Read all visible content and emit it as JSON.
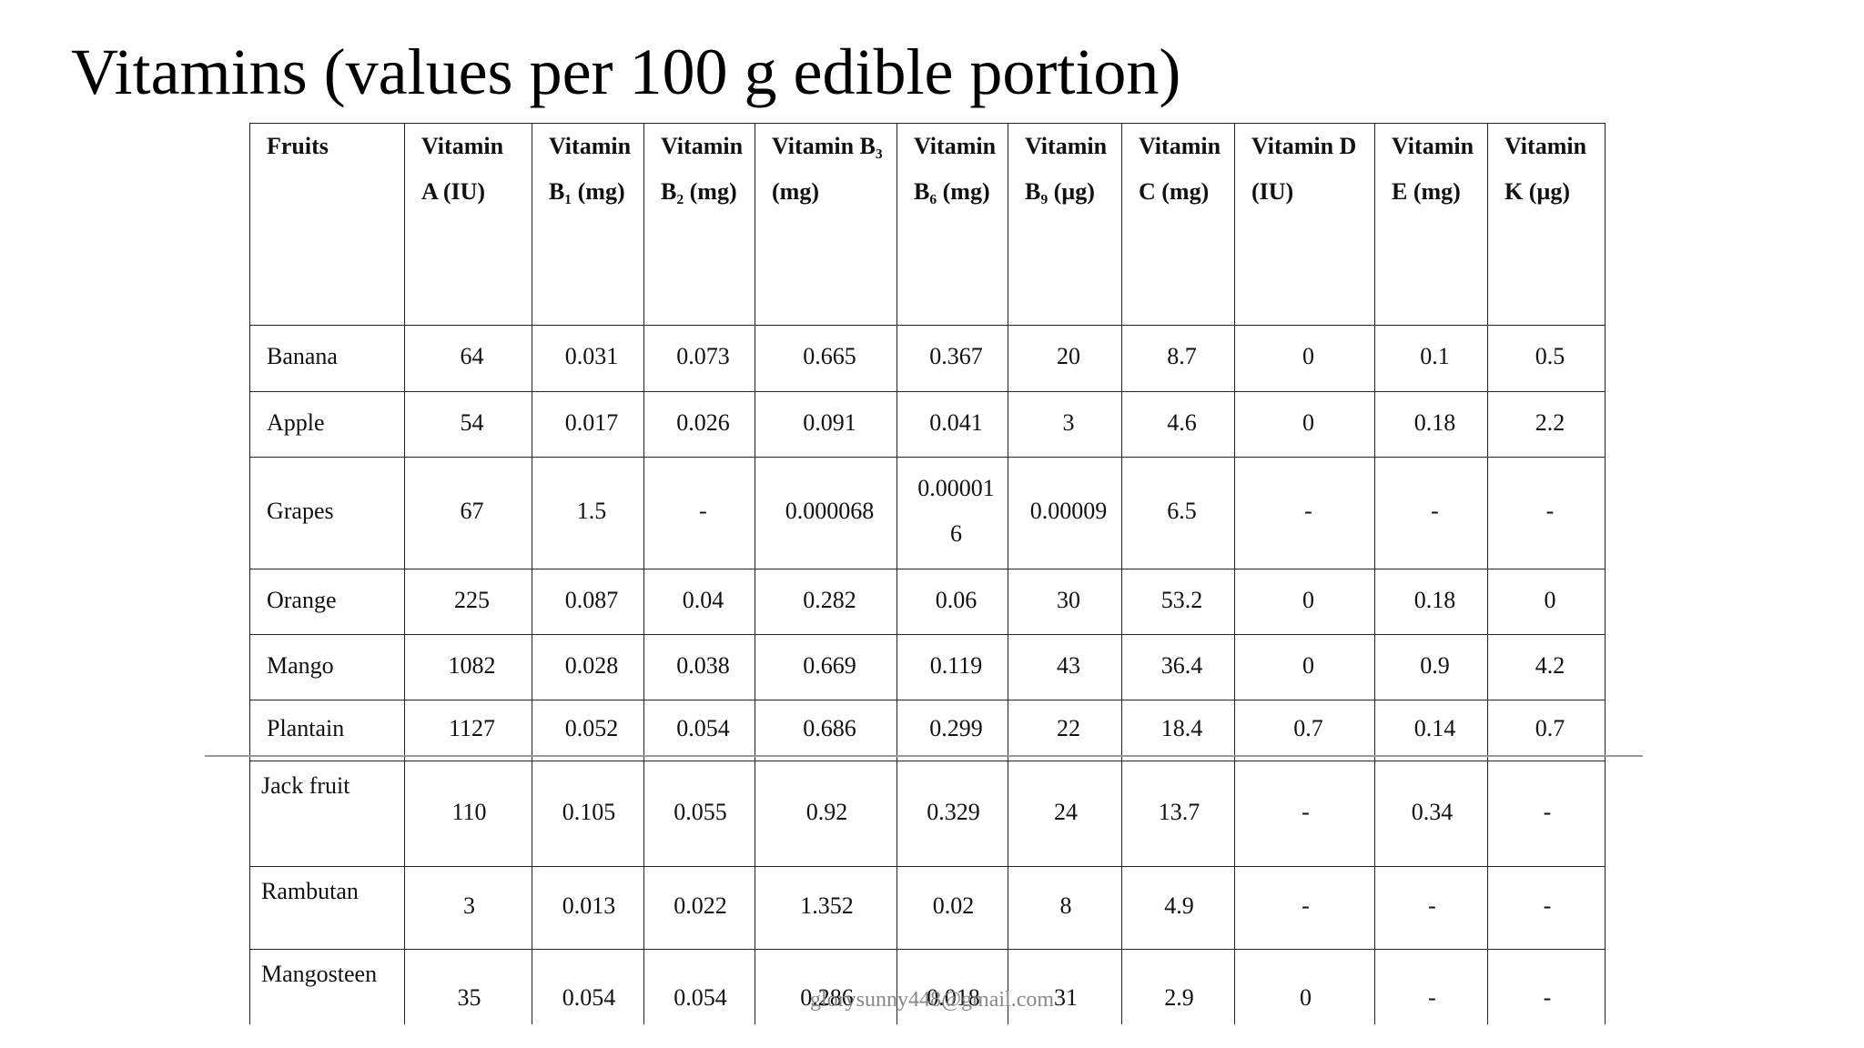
{
  "title": "Vitamins (values per 100 g edible portion)",
  "table": {
    "header": [
      "Fruits",
      "Vitamin A (IU)",
      "Vitamin B₁ (mg)",
      "Vitamin B₂ (mg)",
      "Vitamin B₃ (mg)",
      "Vitamin B₆ (mg)",
      "Vitamin B₉ (µg)",
      "Vitamin C (mg)",
      "Vitamin D (IU)",
      "Vitamin E (mg)",
      "Vitamin K (µg)"
    ],
    "rows": [
      [
        "Banana",
        "64",
        "0.031",
        "0.073",
        "0.665",
        "0.367",
        "20",
        "8.7",
        "0",
        "0.1",
        "0.5"
      ],
      [
        "Apple",
        "54",
        "0.017",
        "0.026",
        "0.091",
        "0.041",
        "3",
        "4.6",
        "0",
        "0.18",
        "2.2"
      ],
      [
        "Grapes",
        "67",
        "1.5",
        "-",
        "0.000068",
        "0.000016",
        "0.00009",
        "6.5",
        "-",
        "-",
        "-"
      ],
      [
        "Orange",
        "225",
        "0.087",
        "0.04",
        "0.282",
        "0.06",
        "30",
        "53.2",
        "0",
        "0.18",
        "0"
      ],
      [
        "Mango",
        "1082",
        "0.028",
        "0.038",
        "0.669",
        "0.119",
        "43",
        "36.4",
        "0",
        "0.9",
        "4.2"
      ],
      [
        "Plantain",
        "1127",
        "0.052",
        "0.054",
        "0.686",
        "0.299",
        "22",
        "18.4",
        "0.7",
        "0.14",
        "0.7"
      ],
      [
        "Jack fruit",
        "110",
        "0.105",
        "0.055",
        "0.92",
        "0.329",
        "24",
        "13.7",
        "-",
        "0.34",
        "-"
      ],
      [
        "Rambutan",
        "3",
        "0.013",
        "0.022",
        "1.352",
        "0.02",
        "8",
        "4.9",
        "-",
        "-",
        "-"
      ],
      [
        "Mangosteen",
        "35",
        "0.054",
        "0.054",
        "0.286",
        "0.018",
        "31",
        "2.9",
        "0",
        "-",
        "-"
      ]
    ]
  },
  "watermark": "glorysunny448@gmail.com"
}
